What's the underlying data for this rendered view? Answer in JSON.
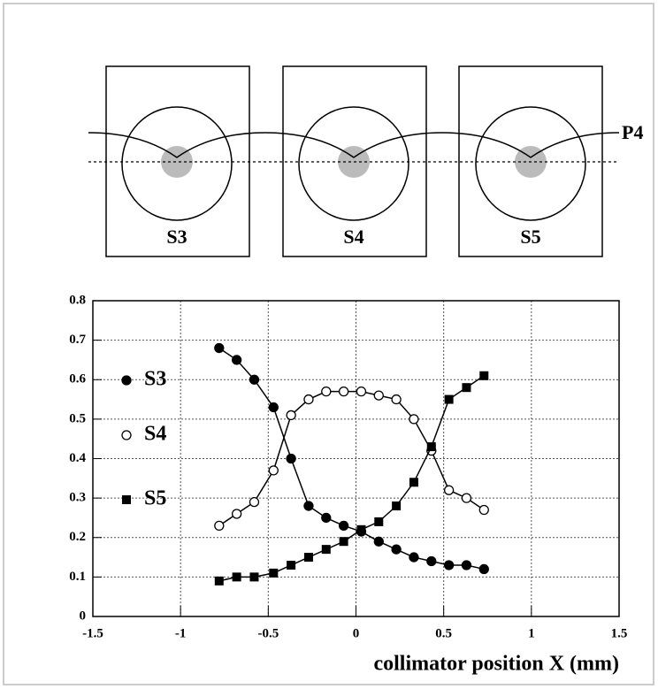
{
  "diagram": {
    "sensors": [
      "S3",
      "S4",
      "S5"
    ],
    "path_label": "P4"
  },
  "chart_data": {
    "type": "line",
    "x_label": "collimator position X (mm)",
    "x": [
      -0.78,
      -0.68,
      -0.58,
      -0.47,
      -0.37,
      -0.27,
      -0.17,
      -0.07,
      0.03,
      0.13,
      0.23,
      0.33,
      0.43,
      0.53,
      0.63,
      0.73
    ],
    "series": [
      {
        "name": "S3",
        "color": "#000000",
        "marker": "circle",
        "values": [
          0.68,
          0.65,
          0.6,
          0.53,
          0.4,
          0.28,
          0.25,
          0.23,
          0.215,
          0.19,
          0.17,
          0.15,
          0.14,
          0.13,
          0.13,
          0.12
        ]
      },
      {
        "name": "S4",
        "color": "#000000",
        "marker": "open-circle",
        "values": [
          0.23,
          0.26,
          0.29,
          0.37,
          0.51,
          0.55,
          0.57,
          0.57,
          0.57,
          0.56,
          0.55,
          0.5,
          0.42,
          0.32,
          0.3,
          0.27
        ]
      },
      {
        "name": "S5",
        "color": "#000000",
        "marker": "square",
        "values": [
          0.09,
          0.1,
          0.1,
          0.11,
          0.13,
          0.15,
          0.17,
          0.19,
          0.22,
          0.24,
          0.28,
          0.34,
          0.43,
          0.55,
          0.58,
          0.61
        ]
      }
    ],
    "xlim": [
      -1.5,
      1.5
    ],
    "xticks": [
      -1.5,
      -1,
      -0.5,
      0,
      0.5,
      1,
      1.5
    ],
    "ylim": [
      0,
      0.8
    ],
    "yticks": [
      0,
      0.1,
      0.2,
      0.3,
      0.4,
      0.5,
      0.6,
      0.7,
      0.8
    ],
    "grid": true
  }
}
